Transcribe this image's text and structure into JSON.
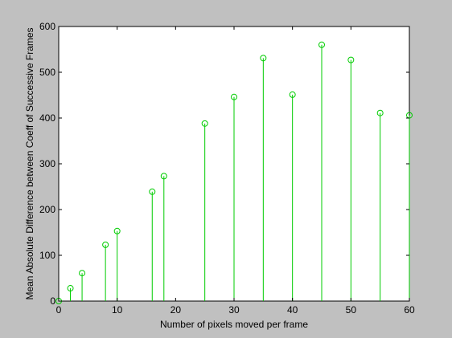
{
  "chart_data": {
    "type": "stem",
    "title": "",
    "xlabel": "Number of pixels moved per frame",
    "ylabel": "Mean Absolute Difference between Coeff of Successive Frames",
    "xlim": [
      0,
      60
    ],
    "ylim": [
      0,
      600
    ],
    "xticks": [
      0,
      10,
      20,
      30,
      40,
      50,
      60
    ],
    "yticks": [
      0,
      100,
      200,
      300,
      400,
      500,
      600
    ],
    "grid": false,
    "legend": "none",
    "series": [
      {
        "x": [
          0,
          2,
          4,
          8,
          10,
          16,
          18,
          25,
          30,
          35,
          40,
          45,
          50,
          55,
          60
        ],
        "y": [
          0,
          28,
          61,
          123,
          153,
          239,
          273,
          388,
          446,
          531,
          451,
          560,
          527,
          411,
          406
        ],
        "color": "#00cc00",
        "marker": "circle"
      }
    ]
  },
  "colors": {
    "figure_background": "#c0c0c0",
    "axes_background": "#ffffff",
    "axis": "#000000",
    "stem": "#00cc00"
  }
}
